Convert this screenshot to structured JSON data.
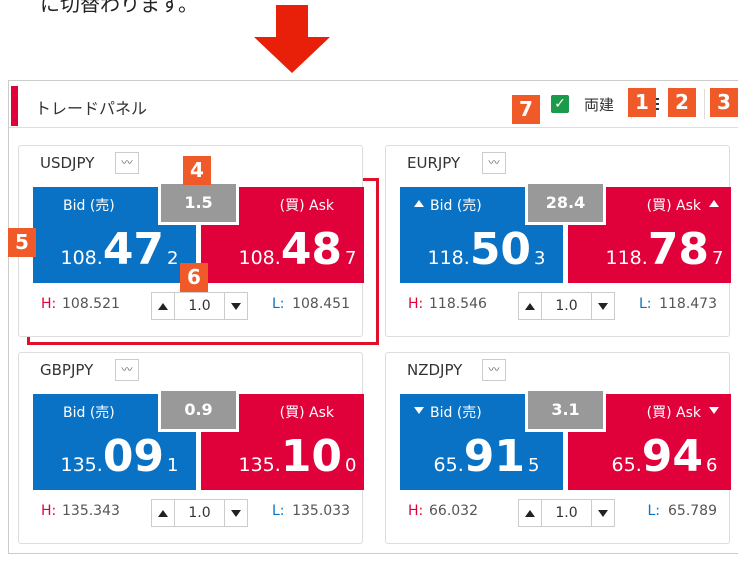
{
  "caption": "に切替わります。",
  "panel": {
    "title": "トレードパネル",
    "hedge_label": "両建"
  },
  "badges": [
    "1",
    "2",
    "3",
    "4",
    "5",
    "6",
    "7"
  ],
  "cards": [
    {
      "symbol": "USDJPY",
      "bid_label": "Bid (売)",
      "ask_label": "(買) Ask",
      "spread": "1.5",
      "bid": {
        "prefix": "108.",
        "main": "47",
        "suffix": "2"
      },
      "ask": {
        "prefix": "108.",
        "main": "48",
        "suffix": "7"
      },
      "high_label": "H:",
      "high": "108.521",
      "quantity": "1.0",
      "low_label": "L:",
      "low": "108.451"
    },
    {
      "symbol": "EURJPY",
      "bid_label": "Bid (売)",
      "ask_label": "(買) Ask",
      "spread": "28.4",
      "bid": {
        "prefix": "118.",
        "main": "50",
        "suffix": "3"
      },
      "ask": {
        "prefix": "118.",
        "main": "78",
        "suffix": "7"
      },
      "high_label": "H:",
      "high": "118.546",
      "quantity": "1.0",
      "low_label": "L:",
      "low": "118.473"
    },
    {
      "symbol": "GBPJPY",
      "bid_label": "Bid (売)",
      "ask_label": "(買) Ask",
      "spread": "0.9",
      "bid": {
        "prefix": "135.",
        "main": "09",
        "suffix": "1"
      },
      "ask": {
        "prefix": "135.",
        "main": "10",
        "suffix": "0"
      },
      "high_label": "H:",
      "high": "135.343",
      "quantity": "1.0",
      "low_label": "L:",
      "low": "135.033"
    },
    {
      "symbol": "NZDJPY",
      "bid_label": "Bid (売)",
      "ask_label": "(買) Ask",
      "spread": "3.1",
      "bid": {
        "prefix": "65.",
        "main": "91",
        "suffix": "5"
      },
      "ask": {
        "prefix": "65.",
        "main": "94",
        "suffix": "6"
      },
      "high_label": "H:",
      "high": "66.032",
      "quantity": "1.0",
      "low_label": "L:",
      "low": "65.789"
    }
  ]
}
